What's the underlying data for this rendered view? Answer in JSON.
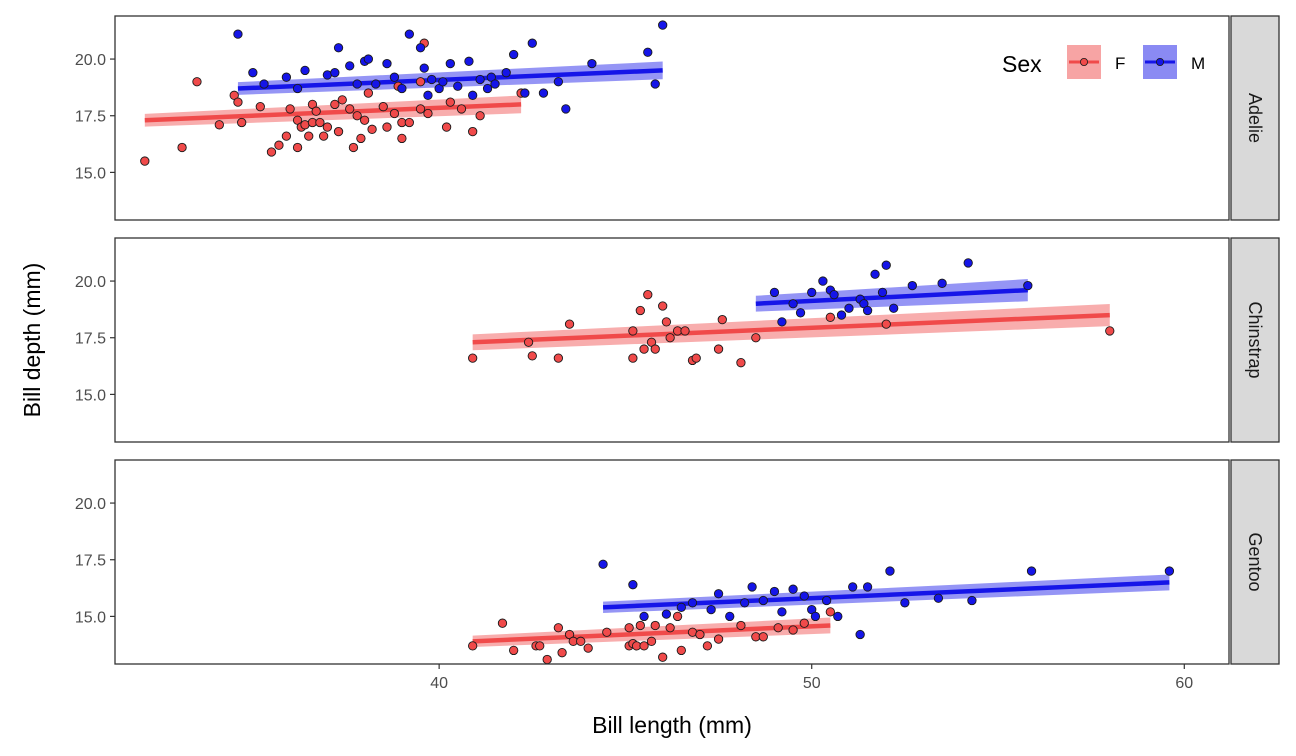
{
  "chart_data": {
    "type": "scatter",
    "xlabel": "Bill length (mm)",
    "ylabel": "Bill depth (mm)",
    "xlim": [
      31.3,
      61.2
    ],
    "ylim": [
      12.9,
      21.9
    ],
    "x_ticks": [
      "40",
      "50",
      "60"
    ],
    "x_tick_values": [
      40,
      50,
      60
    ],
    "y_ticks": [
      "15.0",
      "17.5",
      "20.0"
    ],
    "y_tick_values": [
      15.0,
      17.5,
      20.0
    ],
    "grid": false,
    "legend": {
      "title": "Sex",
      "placement": "top-right",
      "entries": [
        {
          "label": "F",
          "color": "#f04a4a"
        },
        {
          "label": "M",
          "color": "#1515e8"
        }
      ]
    },
    "panels": [
      {
        "label": "Adelie",
        "fits": [
          {
            "sex": "F",
            "x": [
              32.1,
              42.2
            ],
            "y": [
              17.3,
              18.0
            ],
            "band": 0.28
          },
          {
            "sex": "M",
            "x": [
              34.6,
              46.0
            ],
            "y": [
              18.7,
              19.5
            ],
            "band": 0.28
          }
        ],
        "points": {
          "F": [
            [
              32.1,
              15.5
            ],
            [
              33.1,
              16.1
            ],
            [
              33.5,
              19.0
            ],
            [
              34.1,
              17.1
            ],
            [
              34.5,
              18.4
            ],
            [
              34.6,
              18.1
            ],
            [
              34.7,
              17.2
            ],
            [
              35.2,
              17.9
            ],
            [
              35.5,
              15.9
            ],
            [
              35.7,
              16.2
            ],
            [
              35.9,
              16.6
            ],
            [
              36.0,
              17.8
            ],
            [
              36.2,
              17.3
            ],
            [
              36.2,
              16.1
            ],
            [
              36.3,
              17.0
            ],
            [
              36.4,
              17.1
            ],
            [
              36.5,
              16.6
            ],
            [
              36.6,
              17.2
            ],
            [
              36.6,
              18.0
            ],
            [
              36.7,
              17.7
            ],
            [
              36.8,
              17.2
            ],
            [
              36.9,
              16.6
            ],
            [
              37.0,
              17.0
            ],
            [
              37.2,
              18.0
            ],
            [
              37.3,
              16.8
            ],
            [
              37.4,
              18.2
            ],
            [
              37.6,
              17.8
            ],
            [
              37.7,
              16.1
            ],
            [
              37.8,
              17.5
            ],
            [
              37.9,
              16.5
            ],
            [
              38.0,
              17.3
            ],
            [
              38.1,
              18.5
            ],
            [
              38.2,
              16.9
            ],
            [
              38.5,
              17.9
            ],
            [
              38.6,
              17.0
            ],
            [
              38.8,
              17.6
            ],
            [
              38.9,
              18.8
            ],
            [
              39.0,
              16.5
            ],
            [
              39.0,
              17.2
            ],
            [
              39.2,
              17.2
            ],
            [
              39.5,
              17.8
            ],
            [
              39.5,
              19.0
            ],
            [
              39.6,
              20.7
            ],
            [
              39.7,
              17.6
            ],
            [
              40.2,
              17.0
            ],
            [
              40.3,
              18.1
            ],
            [
              40.6,
              17.8
            ],
            [
              40.9,
              16.8
            ],
            [
              41.1,
              17.5
            ],
            [
              42.2,
              18.5
            ]
          ],
          "M": [
            [
              34.6,
              21.1
            ],
            [
              35.0,
              19.4
            ],
            [
              35.3,
              18.9
            ],
            [
              35.9,
              19.2
            ],
            [
              36.2,
              18.7
            ],
            [
              36.4,
              19.5
            ],
            [
              37.0,
              19.3
            ],
            [
              37.2,
              19.4
            ],
            [
              37.3,
              20.5
            ],
            [
              37.6,
              19.7
            ],
            [
              37.8,
              18.9
            ],
            [
              38.0,
              19.9
            ],
            [
              38.1,
              20.0
            ],
            [
              38.3,
              18.9
            ],
            [
              38.6,
              19.8
            ],
            [
              38.8,
              19.2
            ],
            [
              39.0,
              18.7
            ],
            [
              39.2,
              21.1
            ],
            [
              39.5,
              20.5
            ],
            [
              39.6,
              19.6
            ],
            [
              39.7,
              18.4
            ],
            [
              39.8,
              19.1
            ],
            [
              40.0,
              18.7
            ],
            [
              40.1,
              19.0
            ],
            [
              40.3,
              19.8
            ],
            [
              40.5,
              18.8
            ],
            [
              40.8,
              19.9
            ],
            [
              40.9,
              18.4
            ],
            [
              41.1,
              19.1
            ],
            [
              41.3,
              18.7
            ],
            [
              41.4,
              19.2
            ],
            [
              41.5,
              18.9
            ],
            [
              41.8,
              19.4
            ],
            [
              42.0,
              20.2
            ],
            [
              42.3,
              18.5
            ],
            [
              42.5,
              20.7
            ],
            [
              42.8,
              18.5
            ],
            [
              43.2,
              19.0
            ],
            [
              43.4,
              17.8
            ],
            [
              44.1,
              19.8
            ],
            [
              45.6,
              20.3
            ],
            [
              45.8,
              18.9
            ],
            [
              46.0,
              21.5
            ]
          ]
        }
      },
      {
        "label": "Chinstrap",
        "fits": [
          {
            "sex": "F",
            "x": [
              40.9,
              58.0
            ],
            "y": [
              17.3,
              18.5
            ],
            "band": 0.35
          },
          {
            "sex": "M",
            "x": [
              48.5,
              55.8
            ],
            "y": [
              19.0,
              19.6
            ],
            "band": 0.35
          }
        ],
        "points": {
          "F": [
            [
              40.9,
              16.6
            ],
            [
              42.4,
              17.3
            ],
            [
              42.5,
              16.7
            ],
            [
              43.2,
              16.6
            ],
            [
              43.5,
              18.1
            ],
            [
              45.2,
              16.6
            ],
            [
              45.2,
              17.8
            ],
            [
              45.4,
              18.7
            ],
            [
              45.5,
              17.0
            ],
            [
              45.6,
              19.4
            ],
            [
              45.7,
              17.3
            ],
            [
              45.8,
              17.0
            ],
            [
              46.0,
              18.9
            ],
            [
              46.1,
              18.2
            ],
            [
              46.2,
              17.5
            ],
            [
              46.4,
              17.8
            ],
            [
              46.6,
              17.8
            ],
            [
              46.8,
              16.5
            ],
            [
              46.9,
              16.6
            ],
            [
              47.5,
              17.0
            ],
            [
              47.6,
              18.3
            ],
            [
              48.1,
              16.4
            ],
            [
              48.5,
              17.5
            ],
            [
              50.5,
              18.4
            ],
            [
              52.0,
              18.1
            ],
            [
              58.0,
              17.8
            ]
          ],
          "M": [
            [
              49.0,
              19.5
            ],
            [
              49.2,
              18.2
            ],
            [
              49.5,
              19.0
            ],
            [
              49.7,
              18.6
            ],
            [
              50.0,
              19.5
            ],
            [
              50.3,
              20.0
            ],
            [
              50.5,
              19.6
            ],
            [
              50.6,
              19.4
            ],
            [
              50.8,
              18.5
            ],
            [
              51.0,
              18.8
            ],
            [
              51.3,
              19.2
            ],
            [
              51.4,
              19.0
            ],
            [
              51.5,
              18.7
            ],
            [
              51.7,
              20.3
            ],
            [
              51.9,
              19.5
            ],
            [
              52.0,
              20.7
            ],
            [
              52.2,
              18.8
            ],
            [
              52.7,
              19.8
            ],
            [
              53.5,
              19.9
            ],
            [
              54.2,
              20.8
            ],
            [
              55.8,
              19.8
            ]
          ]
        }
      },
      {
        "label": "Gentoo",
        "fits": [
          {
            "sex": "F",
            "x": [
              40.9,
              50.5
            ],
            "y": [
              13.9,
              14.6
            ],
            "band": 0.25
          },
          {
            "sex": "M",
            "x": [
              44.4,
              59.6
            ],
            "y": [
              15.4,
              16.5
            ],
            "band": 0.25
          }
        ],
        "points": {
          "F": [
            [
              40.9,
              13.7
            ],
            [
              41.7,
              14.7
            ],
            [
              42.0,
              13.5
            ],
            [
              42.6,
              13.7
            ],
            [
              42.7,
              13.7
            ],
            [
              42.9,
              13.1
            ],
            [
              43.2,
              14.5
            ],
            [
              43.3,
              13.4
            ],
            [
              43.5,
              14.2
            ],
            [
              43.6,
              13.9
            ],
            [
              43.8,
              13.9
            ],
            [
              44.0,
              13.6
            ],
            [
              44.5,
              14.3
            ],
            [
              45.1,
              14.5
            ],
            [
              45.1,
              13.7
            ],
            [
              45.2,
              13.8
            ],
            [
              45.3,
              13.7
            ],
            [
              45.4,
              14.6
            ],
            [
              45.5,
              13.7
            ],
            [
              45.7,
              13.9
            ],
            [
              45.8,
              14.6
            ],
            [
              46.0,
              13.2
            ],
            [
              46.2,
              14.5
            ],
            [
              46.4,
              15.0
            ],
            [
              46.5,
              13.5
            ],
            [
              46.8,
              14.3
            ],
            [
              47.0,
              14.2
            ],
            [
              47.2,
              13.7
            ],
            [
              47.5,
              14.0
            ],
            [
              48.1,
              14.6
            ],
            [
              48.5,
              14.1
            ],
            [
              48.7,
              14.1
            ],
            [
              49.1,
              14.5
            ],
            [
              49.5,
              14.4
            ],
            [
              49.8,
              14.7
            ],
            [
              50.5,
              15.2
            ]
          ],
          "M": [
            [
              44.4,
              17.3
            ],
            [
              45.2,
              16.4
            ],
            [
              45.5,
              15.0
            ],
            [
              46.1,
              15.1
            ],
            [
              46.5,
              15.4
            ],
            [
              46.8,
              15.6
            ],
            [
              47.3,
              15.3
            ],
            [
              47.5,
              16.0
            ],
            [
              47.8,
              15.0
            ],
            [
              48.2,
              15.6
            ],
            [
              48.4,
              16.3
            ],
            [
              48.7,
              15.7
            ],
            [
              49.0,
              16.1
            ],
            [
              49.2,
              15.2
            ],
            [
              49.5,
              16.2
            ],
            [
              49.8,
              15.9
            ],
            [
              50.0,
              15.3
            ],
            [
              50.1,
              15.0
            ],
            [
              50.4,
              15.7
            ],
            [
              50.7,
              15.0
            ],
            [
              51.1,
              16.3
            ],
            [
              51.3,
              14.2
            ],
            [
              51.5,
              16.3
            ],
            [
              52.1,
              17.0
            ],
            [
              52.5,
              15.6
            ],
            [
              53.4,
              15.8
            ],
            [
              54.3,
              15.7
            ],
            [
              55.9,
              17.0
            ],
            [
              59.6,
              17.0
            ]
          ]
        }
      }
    ]
  },
  "colors": {
    "female": "#f04a4a",
    "male": "#1515e8",
    "strip_bg": "#d9d9d9",
    "panel_border": "#333333"
  }
}
